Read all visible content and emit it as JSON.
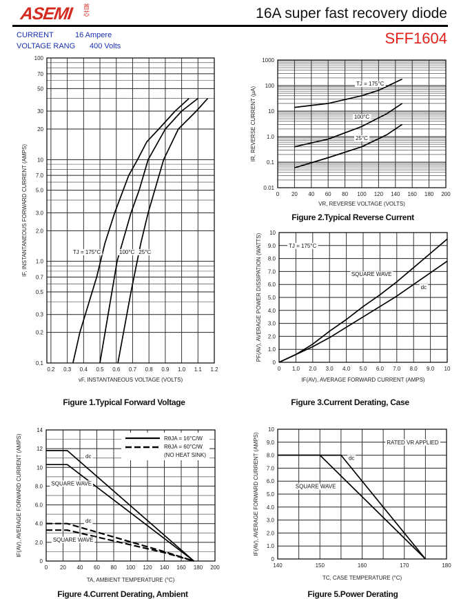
{
  "header": {
    "logo_text": "ASEMI",
    "logo_cn": "首芯",
    "title": "16A super fast recovery diode",
    "part_number": "SFF1604",
    "specs": [
      {
        "label": "CURRENT",
        "value": "16  Ampere"
      },
      {
        "label": "VOLTAGE RANG",
        "value": "400  Volts"
      }
    ]
  },
  "colors": {
    "brand_red": "#d42a20",
    "spec_blue": "#1a2fb0"
  },
  "captions": {
    "fig1": "Figure 1.Typical Forward Voltage",
    "fig2": "Figure 2.Typical Reverse Current",
    "fig3": "Figure 3.Current Derating, Case",
    "fig4": "Figure 4.Current Derating, Ambient",
    "fig5": "Figure 5.Power Derating"
  },
  "chart_data": [
    {
      "id": "fig1",
      "type": "line",
      "title": "Typical Forward Voltage",
      "xlabel": "vF, INSTANTANEOUS VOLTAGE (VOLTS)",
      "ylabel": "IF, INSTANTANEOUS FORWARD CURRENT (AMPS)",
      "xlim": [
        0.175,
        1.2
      ],
      "ylim": [
        0.1,
        100
      ],
      "ylog": true,
      "xticks": [
        0.2,
        0.3,
        0.4,
        0.5,
        0.6,
        0.7,
        0.8,
        0.9,
        1.0,
        1.1,
        1.2
      ],
      "xtick_labels": [
        "0.2",
        "0.3",
        "0.4",
        "0.5",
        "0.6",
        "0.7",
        "0.8",
        "0.9",
        "1.0",
        "1.1",
        "1.2"
      ],
      "yticks": [
        0.1,
        0.2,
        0.3,
        0.5,
        0.7,
        1,
        2,
        3,
        5,
        7,
        10,
        20,
        30,
        50,
        70,
        100
      ],
      "ytick_labels": [
        "0.1",
        "0.2",
        "0.3",
        "0.5",
        "0.7",
        "1.0",
        "2.0",
        "3.0",
        "5.0",
        "7.0",
        "10",
        "20",
        "30",
        "50",
        "70",
        "100"
      ],
      "series": [
        {
          "name": "TJ = 175°C",
          "x": [
            0.335,
            0.377,
            0.48,
            0.53,
            0.59,
            0.676,
            0.73,
            0.787,
            0.86,
            0.96,
            1.045
          ],
          "y": [
            0.1,
            0.2,
            0.7,
            1.5,
            3,
            7,
            10,
            15,
            20,
            30,
            40
          ]
        },
        {
          "name": "100°C",
          "x": [
            0.5,
            0.55,
            0.605,
            0.69,
            0.74,
            0.795,
            0.9,
            1.0,
            1.1
          ],
          "y": [
            0.1,
            0.3,
            1.0,
            3,
            5,
            10,
            20,
            30,
            40
          ]
        },
        {
          "name": "25°C",
          "x": [
            0.61,
            0.69,
            0.75,
            0.795,
            0.89,
            0.98,
            1.09,
            1.16
          ],
          "y": [
            0.1,
            0.5,
            1.5,
            3,
            10,
            20,
            30,
            40
          ]
        }
      ],
      "annotations": [
        {
          "text": "TJ = 175°C",
          "x": 0.42,
          "y": 1.24
        },
        {
          "text": "100°C",
          "x": 0.665,
          "y": 1.24
        },
        {
          "text": "25°C",
          "x": 0.775,
          "y": 1.24
        }
      ]
    },
    {
      "id": "fig2",
      "type": "line",
      "title": "Typical Reverse Current",
      "xlabel": "VR, REVERSE VOLTAGE (VOLTS)",
      "ylabel": "IR, REVERSE CURRENT (μA)",
      "xlim": [
        0,
        200
      ],
      "ylim": [
        0.01,
        1000
      ],
      "ylog": true,
      "xticks": [
        0,
        20,
        40,
        60,
        80,
        100,
        120,
        140,
        160,
        180,
        200
      ],
      "xtick_labels": [
        "0",
        "20",
        "40",
        "60",
        "80",
        "100",
        "120",
        "140",
        "160",
        "180",
        "200"
      ],
      "yticks": [
        0.01,
        0.1,
        1,
        10,
        100,
        1000
      ],
      "ytick_labels": [
        "0.01",
        "0.1",
        "1.0",
        "10",
        "100",
        "1000"
      ],
      "series": [
        {
          "name": "TJ = 175°C",
          "x": [
            20,
            60,
            100,
            120,
            148
          ],
          "y": [
            14,
            20,
            40,
            65,
            180
          ]
        },
        {
          "name": "100°C",
          "x": [
            20,
            60,
            100,
            130,
            148
          ],
          "y": [
            0.4,
            0.8,
            2.5,
            8,
            20
          ]
        },
        {
          "name": "25°C",
          "x": [
            20,
            60,
            100,
            130,
            148
          ],
          "y": [
            0.06,
            0.15,
            0.4,
            1.2,
            3
          ]
        }
      ],
      "annotations": [
        {
          "text": "TJ = 175°C",
          "x": 110,
          "y": 120
        },
        {
          "text": "100°C",
          "x": 100,
          "y": 6
        },
        {
          "text": "25°C",
          "x": 100,
          "y": 0.89
        }
      ]
    },
    {
      "id": "fig3",
      "type": "line",
      "title": "Current Derating, Case",
      "xlabel": "IF(AV), AVERAGE FORWARD CURRENT (AMPS)",
      "ylabel": "PF(AV), AVERAGE POWER DISSIPATION (WATTS)",
      "xlim": [
        0,
        10
      ],
      "ylim": [
        0,
        10
      ],
      "ylog": false,
      "xticks": [
        0,
        1,
        2,
        3,
        4,
        5,
        6,
        7,
        8,
        9,
        10
      ],
      "xtick_labels": [
        "0",
        "1.0",
        "2.0",
        "3.0",
        "4.0",
        "5.0",
        "6.0",
        "7.0",
        "8.0",
        "9.0",
        "10"
      ],
      "yticks": [
        0,
        1,
        2,
        3,
        4,
        5,
        6,
        7,
        8,
        9,
        10
      ],
      "ytick_labels": [
        "0",
        "1.0",
        "2.0",
        "3.0",
        "4.0",
        "5.0",
        "6.0",
        "7.0",
        "8.0",
        "9.0",
        "10"
      ],
      "series": [
        {
          "name": "SQUARE WAVE",
          "x": [
            0,
            1,
            2,
            3,
            4,
            5,
            6,
            7,
            8,
            9,
            10
          ],
          "y": [
            0,
            0.6,
            1.4,
            2.4,
            3.3,
            4.3,
            5.2,
            6.2,
            7.3,
            8.4,
            9.5
          ]
        },
        {
          "name": "dc",
          "x": [
            0,
            1,
            2,
            3,
            4,
            5,
            6,
            7,
            8,
            9,
            10
          ],
          "y": [
            0,
            0.6,
            1.2,
            1.9,
            2.7,
            3.5,
            4.3,
            5.1,
            6.0,
            6.9,
            7.8
          ]
        }
      ],
      "annotations": [
        {
          "text": "TJ = 175°C",
          "x": 1.4,
          "y": 9.0
        },
        {
          "text": "SQUARE WAVE",
          "x": 5.5,
          "y": 6.8
        },
        {
          "text": "dc",
          "x": 8.6,
          "y": 5.8
        }
      ]
    },
    {
      "id": "fig4",
      "type": "line",
      "title": "Current Derating, Ambient",
      "xlabel": "TA, AMBIENT TEMPERATURE (°C)",
      "ylabel": "IF(AV), AVERAGE FORWARD CURRENT (AMPS)",
      "xlim": [
        0,
        200
      ],
      "ylim": [
        0,
        14
      ],
      "ylog": false,
      "xticks": [
        0,
        20,
        40,
        60,
        80,
        100,
        120,
        140,
        160,
        180,
        200
      ],
      "xtick_labels": [
        "0",
        "20",
        "40",
        "60",
        "80",
        "100",
        "120",
        "140",
        "160",
        "180",
        "200"
      ],
      "yticks": [
        0,
        2,
        4,
        6,
        8,
        10,
        12,
        14
      ],
      "ytick_labels": [
        "0",
        "2.0",
        "4.0",
        "6.0",
        "8.0",
        "10",
        "12",
        "14"
      ],
      "ygrid_step": 1,
      "series": [
        {
          "name": "dc, RθJA = 16°C/W",
          "dash": false,
          "x": [
            0,
            25,
            175
          ],
          "y": [
            11.8,
            11.8,
            0
          ]
        },
        {
          "name": "SQUARE WAVE, RθJA = 16°C/W",
          "dash": false,
          "x": [
            0,
            25,
            175
          ],
          "y": [
            10.3,
            10.3,
            0
          ]
        },
        {
          "name": "dc, RθJA = 60°C/W",
          "dash": true,
          "x": [
            0,
            25,
            140,
            175
          ],
          "y": [
            4.0,
            4.0,
            1.0,
            0
          ]
        },
        {
          "name": "SQUARE WAVE, RθJA = 60°C/W",
          "dash": true,
          "x": [
            0,
            25,
            140,
            175
          ],
          "y": [
            3.3,
            3.3,
            0.9,
            0
          ]
        }
      ],
      "legend": {
        "placement": "top-right",
        "entries": [
          "RθJA = 16°C/W",
          "RθJA = 60°C/W",
          "(NO HEAT SINK)"
        ]
      },
      "annotations": [
        {
          "text": "dc",
          "x": 50,
          "y": 11.2
        },
        {
          "text": "SQUARE WAVE",
          "x": 30,
          "y": 8.3
        },
        {
          "text": "dc",
          "x": 50,
          "y": 4.3
        },
        {
          "text": "SQUARE WAVE",
          "x": 32,
          "y": 2.3
        }
      ]
    },
    {
      "id": "fig5",
      "type": "line",
      "title": "Power Derating",
      "xlabel": "TC, CASE TEMPERATURE (°C)",
      "ylabel": "IF(AV), AVERAGE FORWARD CURRENT (AMPS)",
      "xlim": [
        140,
        180
      ],
      "ylim": [
        0,
        10
      ],
      "ylog": false,
      "xticks": [
        140,
        150,
        160,
        170,
        180
      ],
      "xtick_labels": [
        "140",
        "150",
        "160",
        "170",
        "180"
      ],
      "xgrid_step": 5,
      "yticks": [
        0,
        1,
        2,
        3,
        4,
        5,
        6,
        7,
        8,
        9,
        10
      ],
      "ytick_labels": [
        "0",
        "1.0",
        "2.0",
        "3.0",
        "4.0",
        "5.0",
        "6.0",
        "7.0",
        "8.0",
        "9.0",
        "10"
      ],
      "series": [
        {
          "name": "dc",
          "x": [
            140,
            155,
            175
          ],
          "y": [
            8,
            8,
            0
          ]
        },
        {
          "name": "SQUARE WAVE",
          "x": [
            140,
            150,
            175
          ],
          "y": [
            8,
            8,
            0
          ]
        }
      ],
      "annotations": [
        {
          "text": "RATED VR APPLIED",
          "x": 172,
          "y": 9.0
        },
        {
          "text": "dc",
          "x": 157.5,
          "y": 7.8
        },
        {
          "text": "SQUARE WAVE",
          "x": 149,
          "y": 5.6
        }
      ]
    }
  ]
}
